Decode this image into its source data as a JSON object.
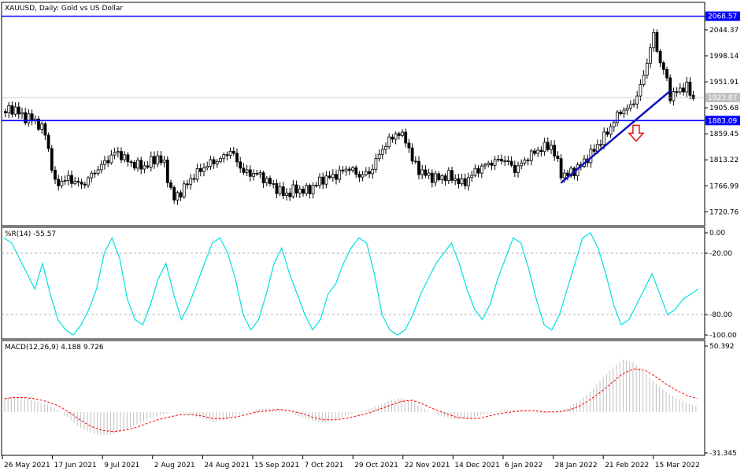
{
  "window": {
    "instrument_label": "XAUUSD, Daily:  Gold vs US Dollar"
  },
  "colors": {
    "background": "#ffffff",
    "candle": "#000000",
    "level_line": "#0000ff",
    "trend_line": "#1010c0",
    "arrow": "#e01010",
    "williams_r": "#00e0e0",
    "macd_hist": "#c0c0c0",
    "macd_signal": "#ff0000",
    "grid_dash": "#b0b0b0",
    "price_tag_bg": "#0000ff",
    "current_price_tag_bg": "#c0c0c0"
  },
  "icons": {
    "down_arrow": "down-arrow-icon"
  },
  "chart_data": [
    {
      "type": "candlestick",
      "title": "XAUUSD, Daily:  Gold vs US Dollar",
      "ylim": [
        1697.5,
        2091.8
      ],
      "y_ticks": [
        "2068.57",
        "2044.37",
        "1998.14",
        "1951.91",
        "1905.68",
        "1859.45",
        "1813.22",
        "1766.99",
        "1720.76"
      ],
      "horizontal_levels": [
        {
          "label": "2068.57",
          "value": 2068.57
        },
        {
          "label": "1883.09",
          "value": 1883.09
        }
      ],
      "current_price": {
        "label": "1923.87",
        "value": 1923.87
      },
      "trend_line": {
        "from": {
          "date": "26 Jan 2022",
          "price": 1772
        },
        "to": {
          "date": "15 Mar 2022",
          "price": 1936
        }
      },
      "annotation_arrow": {
        "direction": "down",
        "date": "28 Feb 2022",
        "price": 1855
      },
      "x_ticks": [
        "26 May 2021",
        "17 Jun 2021",
        "9 Jul 2021",
        "2 Aug 2021",
        "24 Aug 2021",
        "15 Sep 2021",
        "7 Oct 2021",
        "29 Oct 2021",
        "22 Nov 2021",
        "14 Dec 2021",
        "6 Jan 2022",
        "28 Jan 2022",
        "21 Feb 2022",
        "15 Mar 2022"
      ],
      "close_path": [
        [
          "26 May 2021",
          1897
        ],
        [
          "31 May 2021",
          1905
        ],
        [
          "4 Jun 2021",
          1890
        ],
        [
          "9 Jun 2021",
          1885
        ],
        [
          "14 Jun 2021",
          1860
        ],
        [
          "16 Jun 2021",
          1815
        ],
        [
          "18 Jun 2021",
          1770
        ],
        [
          "24 Jun 2021",
          1780
        ],
        [
          "30 Jun 2021",
          1768
        ],
        [
          "5 Jul 2021",
          1790
        ],
        [
          "9 Jul 2021",
          1805
        ],
        [
          "15 Jul 2021",
          1828
        ],
        [
          "21 Jul 2021",
          1808
        ],
        [
          "27 Jul 2021",
          1800
        ],
        [
          "2 Aug 2021",
          1818
        ],
        [
          "5 Aug 2021",
          1805
        ],
        [
          "9 Aug 2021",
          1742
        ],
        [
          "12 Aug 2021",
          1755
        ],
        [
          "18 Aug 2021",
          1785
        ],
        [
          "24 Aug 2021",
          1805
        ],
        [
          "30 Aug 2021",
          1815
        ],
        [
          "3 Sep 2021",
          1830
        ],
        [
          "9 Sep 2021",
          1790
        ],
        [
          "15 Sep 2021",
          1788
        ],
        [
          "21 Sep 2021",
          1770
        ],
        [
          "27 Sep 2021",
          1750
        ],
        [
          "1 Oct 2021",
          1760
        ],
        [
          "7 Oct 2021",
          1758
        ],
        [
          "13 Oct 2021",
          1778
        ],
        [
          "19 Oct 2021",
          1785
        ],
        [
          "25 Oct 2021",
          1800
        ],
        [
          "29 Oct 2021",
          1785
        ],
        [
          "3 Nov 2021",
          1790
        ],
        [
          "9 Nov 2021",
          1835
        ],
        [
          "15 Nov 2021",
          1862
        ],
        [
          "19 Nov 2021",
          1850
        ],
        [
          "22 Nov 2021",
          1810
        ],
        [
          "26 Nov 2021",
          1790
        ],
        [
          "2 Dec 2021",
          1780
        ],
        [
          "8 Dec 2021",
          1785
        ],
        [
          "14 Dec 2021",
          1770
        ],
        [
          "20 Dec 2021",
          1795
        ],
        [
          "26 Dec 2021",
          1808
        ],
        [
          "1 Jan 2022",
          1815
        ],
        [
          "6 Jan 2022",
          1795
        ],
        [
          "12 Jan 2022",
          1820
        ],
        [
          "18 Jan 2022",
          1835
        ],
        [
          "22 Jan 2022",
          1838
        ],
        [
          "26 Jan 2022",
          1790
        ],
        [
          "28 Jan 2022",
          1785
        ],
        [
          "3 Feb 2022",
          1800
        ],
        [
          "9 Feb 2022",
          1828
        ],
        [
          "15 Feb 2022",
          1860
        ],
        [
          "21 Feb 2022",
          1900
        ],
        [
          "25 Feb 2022",
          1905
        ],
        [
          "1 Mar 2022",
          1930
        ],
        [
          "4 Mar 2022",
          1975
        ],
        [
          "8 Mar 2022",
          2040
        ],
        [
          "10 Mar 2022",
          1990
        ],
        [
          "13 Mar 2022",
          1965
        ],
        [
          "15 Mar 2022",
          1925
        ],
        [
          "18 Mar 2022",
          1935
        ],
        [
          "22 Mar 2022",
          1945
        ],
        [
          "25 Mar 2022",
          1920
        ]
      ]
    },
    {
      "type": "line",
      "title": "%R(14) -55.57",
      "series": [
        {
          "name": "%R(14)",
          "last": -55.57
        }
      ],
      "ylim": [
        -100,
        0
      ],
      "y_ticks": [
        "0.00",
        "-20.00",
        "-80.00",
        "-100.00"
      ],
      "levels": [
        -20,
        -80
      ],
      "values": [
        -5,
        -10,
        -25,
        -40,
        -55,
        -30,
        -60,
        -85,
        -95,
        -100,
        -90,
        -75,
        -55,
        -20,
        -5,
        -25,
        -65,
        -85,
        -90,
        -70,
        -45,
        -30,
        -60,
        -85,
        -70,
        -50,
        -30,
        -10,
        -5,
        -20,
        -45,
        -80,
        -95,
        -85,
        -60,
        -30,
        -15,
        -40,
        -60,
        -80,
        -95,
        -85,
        -60,
        -50,
        -30,
        -15,
        -5,
        -10,
        -40,
        -80,
        -95,
        -100,
        -95,
        -80,
        -60,
        -45,
        -30,
        -20,
        -10,
        -30,
        -55,
        -75,
        -85,
        -70,
        -45,
        -25,
        -5,
        -10,
        -35,
        -65,
        -90,
        -95,
        -80,
        -55,
        -30,
        -5,
        0,
        -15,
        -40,
        -70,
        -90,
        -85,
        -70,
        -55,
        -40,
        -60,
        -80,
        -75,
        -65,
        -60,
        -55
      ]
    },
    {
      "type": "bar",
      "title": "MACD(12,26,9) 4.188 9.726",
      "series": [
        {
          "name": "MACD(12,26,9)",
          "last": 4.188
        },
        {
          "name": "Signal",
          "last": 9.726
        }
      ],
      "ylim": [
        -31.345,
        50.392
      ],
      "y_ticks": [
        "50.392",
        "-31.345"
      ],
      "macd": [
        10,
        12,
        11,
        8,
        6,
        2,
        -5,
        -12,
        -16,
        -18,
        -17,
        -14,
        -10,
        -6,
        -3,
        -1,
        0,
        -2,
        -5,
        -8,
        -6,
        -3,
        0,
        2,
        3,
        2,
        0,
        -4,
        -7,
        -8,
        -6,
        -3,
        0,
        2,
        5,
        9,
        11,
        8,
        3,
        -1,
        -4,
        -6,
        -5,
        -3,
        -1,
        1,
        2,
        1,
        0,
        -1,
        0,
        3,
        8,
        15,
        24,
        33,
        40,
        38,
        30,
        22,
        15,
        10,
        6,
        4.188
      ],
      "signal": [
        10,
        11,
        11,
        10,
        8,
        5,
        0,
        -6,
        -11,
        -14,
        -15,
        -14,
        -12,
        -9,
        -6,
        -4,
        -2,
        -2,
        -3,
        -5,
        -5,
        -4,
        -2,
        0,
        1,
        2,
        1,
        -1,
        -4,
        -6,
        -6,
        -5,
        -3,
        -1,
        2,
        5,
        8,
        9,
        6,
        2,
        -1,
        -4,
        -5,
        -5,
        -3,
        -1,
        0,
        1,
        1,
        0,
        0,
        1,
        4,
        9,
        15,
        22,
        29,
        33,
        32,
        27,
        21,
        16,
        12,
        9.726
      ]
    }
  ]
}
